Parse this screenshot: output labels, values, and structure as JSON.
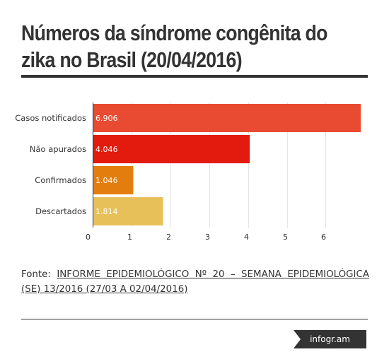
{
  "title": "Números da síndrome congênita do zika no Brasil (20/04/2016)",
  "title_lines": [
    "Números da síndrome congênita do",
    "zika no Brasil (20/04/2016)"
  ],
  "chart_data": {
    "type": "bar",
    "orientation": "horizontal",
    "categories": [
      "Casos notificados",
      "Não apurados",
      "Confirmados",
      "Descartados"
    ],
    "values": [
      6906,
      4046,
      1046,
      1814
    ],
    "value_labels": [
      "6.906",
      "4.046",
      "1.046",
      "1.814"
    ],
    "colors": [
      "#e84b32",
      "#e21b0e",
      "#e37d0d",
      "#e8c05a"
    ],
    "x_ticks": [
      0,
      1,
      2,
      3,
      4,
      5,
      6
    ],
    "tick_unit": 1000,
    "grid": true
  },
  "source": {
    "prefix": "Fonte: ",
    "link_text": "INFORME EPIDEMIOLÓGICO Nº 20 – SEMANA EPIDEMIOLÓGICA (SE) 13/2016 (27/03 A 02/04/2016)"
  },
  "brand": {
    "label": "infogr.am"
  }
}
